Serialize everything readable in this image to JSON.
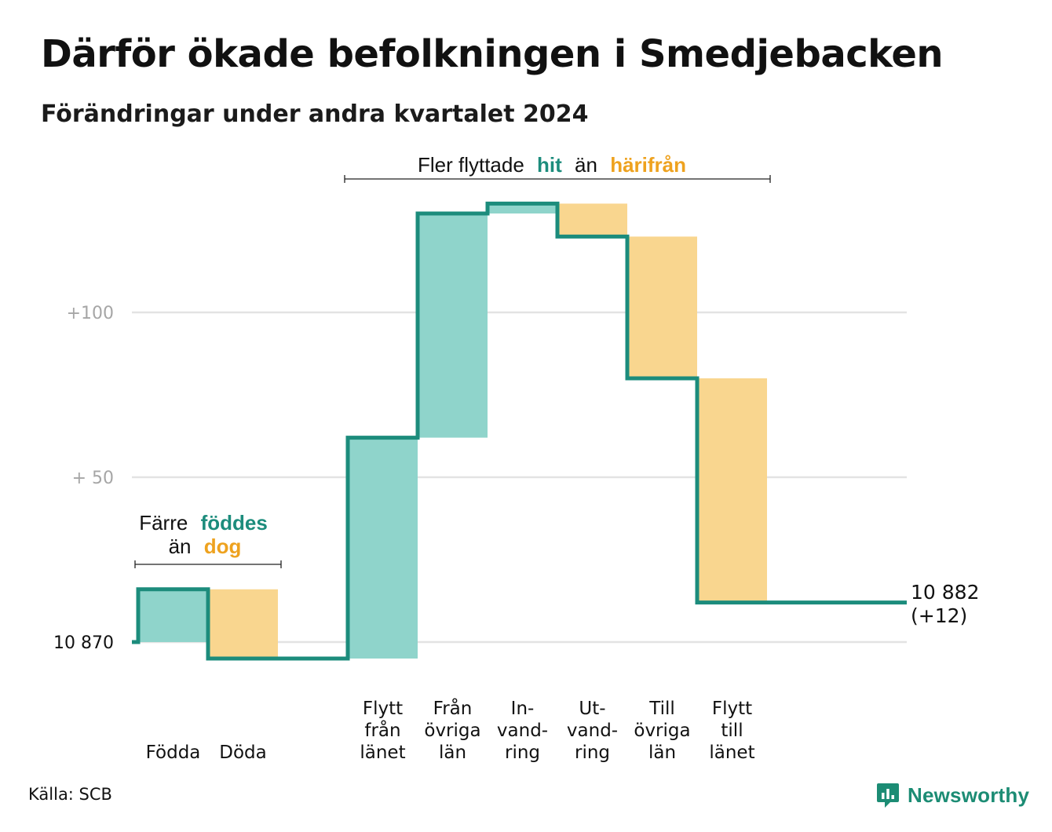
{
  "title": "Därför ökade befolkningen i Smedjebacken",
  "subtitle": "Förändringar under andra kvartalet 2024",
  "source": "Källa: SCB",
  "brand": {
    "name": "Newsworthy",
    "icon": "newsworthy-logo-icon",
    "color": "#1c8c74"
  },
  "colors": {
    "increase_fill": "#8fd4cb",
    "decrease_fill": "#f9d68f",
    "step_line": "#1c8c7c",
    "grid": "#e3e3e3",
    "teal_text": "#1c8c7c",
    "orange_text": "#eea21f"
  },
  "annotations": {
    "births_deaths": {
      "line1_plain": "Färre",
      "line1_teal": "föddes",
      "line2_plain": "än",
      "line2_orange": "dog"
    },
    "migration": {
      "plain1": "Fler flyttade",
      "teal": "hit",
      "plain2": "än",
      "orange": "härifrån"
    }
  },
  "end_label": {
    "value": "10 882",
    "change": "(+12)"
  },
  "chart_data": {
    "type": "waterfall",
    "title": "Därför ökade befolkningen i Smedjebacken",
    "subtitle": "Förändringar under andra kvartalet 2024",
    "start_value": 10870,
    "start_label": "10  870",
    "end_value": 10882,
    "end_change": 12,
    "y_ticks": [
      {
        "offset": 0,
        "label": "10  870"
      },
      {
        "offset": 50,
        "label": "+  50"
      },
      {
        "offset": 100,
        "label": "+100"
      }
    ],
    "y_range": [
      -5,
      140
    ],
    "grid": true,
    "categories": [
      {
        "lines": [
          "Födda"
        ],
        "value": 16,
        "kind": "increase"
      },
      {
        "lines": [
          "Döda"
        ],
        "value": -21,
        "kind": "decrease"
      },
      {
        "lines": [],
        "value": 0,
        "kind": "spacer"
      },
      {
        "lines": [
          "Flytt",
          "från",
          "länet"
        ],
        "value": 67,
        "kind": "increase"
      },
      {
        "lines": [
          "Från",
          "övriga",
          "län"
        ],
        "value": 68,
        "kind": "increase"
      },
      {
        "lines": [
          "In-",
          "vand-",
          "ring"
        ],
        "value": 3,
        "kind": "increase"
      },
      {
        "lines": [
          "Ut-",
          "vand-",
          "ring"
        ],
        "value": -10,
        "kind": "decrease"
      },
      {
        "lines": [
          "Till",
          "övriga",
          "län"
        ],
        "value": -43,
        "kind": "decrease"
      },
      {
        "lines": [
          "Flytt",
          "till",
          "länet"
        ],
        "value": -68,
        "kind": "decrease"
      },
      {
        "lines": [],
        "value": 0,
        "kind": "spacer"
      }
    ]
  }
}
